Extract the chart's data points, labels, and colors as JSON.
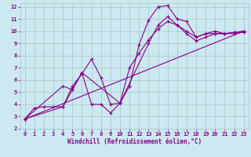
{
  "xlabel": "Windchill (Refroidissement éolien,°C)",
  "xlim": [
    -0.5,
    23.5
  ],
  "ylim": [
    2,
    12.3
  ],
  "xticks": [
    0,
    1,
    2,
    3,
    4,
    5,
    6,
    7,
    8,
    9,
    10,
    11,
    12,
    13,
    14,
    15,
    16,
    17,
    18,
    19,
    20,
    21,
    22,
    23
  ],
  "yticks": [
    2,
    3,
    4,
    5,
    6,
    7,
    8,
    9,
    10,
    11,
    12
  ],
  "bg_color": "#cce8f0",
  "grid_color": "#aacccc",
  "line_color": "#880088",
  "series1_x": [
    0,
    1,
    2,
    3,
    4,
    5,
    6,
    7,
    8,
    9,
    10,
    11,
    12,
    13,
    14,
    15,
    16,
    17,
    18,
    19,
    20,
    21,
    22,
    23
  ],
  "series1_y": [
    2.8,
    3.7,
    3.8,
    3.8,
    3.8,
    5.5,
    6.5,
    7.7,
    6.2,
    4.0,
    4.1,
    5.5,
    8.9,
    10.9,
    12.0,
    12.1,
    11.0,
    10.8,
    9.5,
    9.8,
    9.8,
    9.8,
    9.8,
    10.0
  ],
  "series2_x": [
    0,
    4,
    5,
    6,
    7,
    8,
    9,
    10,
    11,
    12,
    13,
    14,
    15,
    16,
    17,
    18,
    19,
    20,
    21,
    22,
    23
  ],
  "series2_y": [
    2.8,
    5.5,
    5.2,
    6.6,
    4.0,
    4.0,
    3.3,
    4.1,
    7.0,
    8.2,
    9.3,
    10.2,
    10.8,
    10.5,
    10.0,
    9.5,
    9.8,
    10.0,
    9.8,
    9.9,
    10.0
  ],
  "series3_x": [
    0,
    4,
    5,
    6,
    10,
    13,
    14,
    15,
    16,
    17,
    18,
    19,
    20,
    21,
    22,
    23
  ],
  "series3_y": [
    2.8,
    3.8,
    5.2,
    6.6,
    4.1,
    9.0,
    10.5,
    11.2,
    10.5,
    9.8,
    9.2,
    9.5,
    9.8,
    9.8,
    9.9,
    9.9
  ],
  "series4_x": [
    0,
    23
  ],
  "series4_y": [
    2.8,
    10.0
  ]
}
